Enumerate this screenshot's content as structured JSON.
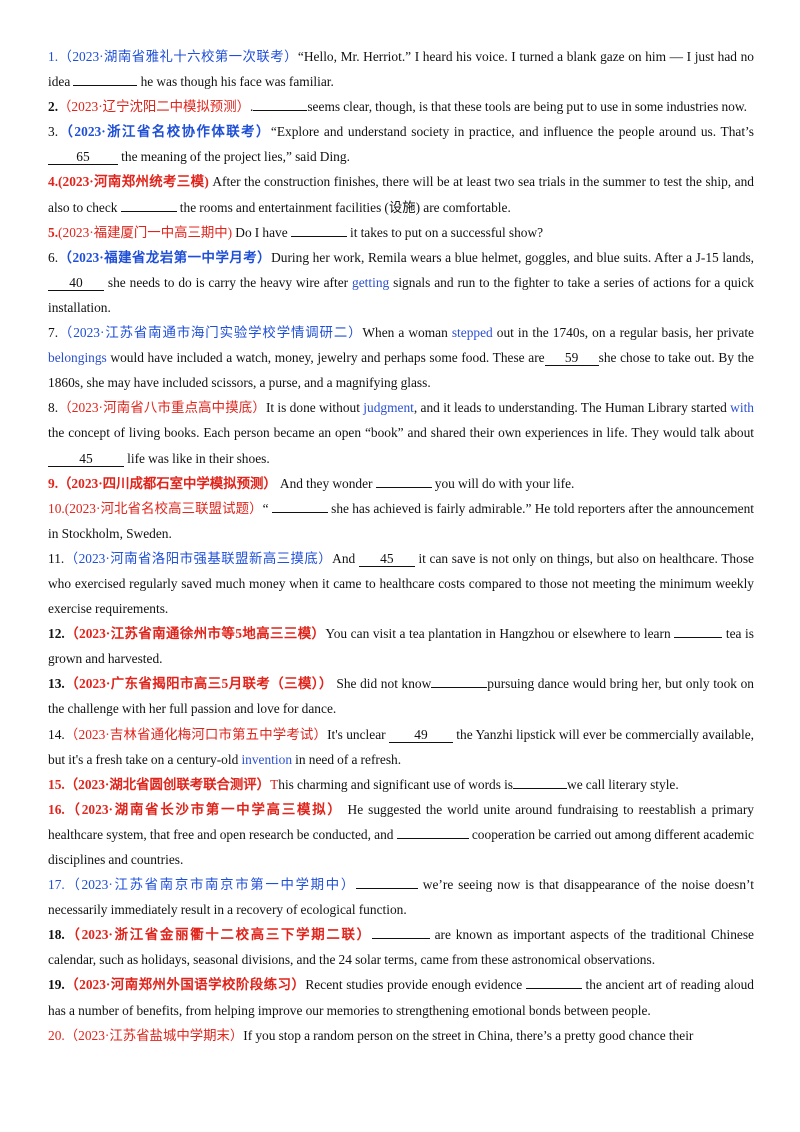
{
  "items": [
    {
      "num": "1.",
      "src": "（2023·湖南省雅礼十六校第一次联考）",
      "t1": "“Hello, Mr. Herriot.” I heard his voice. I turned a blank gaze on him — I just had no idea ",
      "blank": "",
      "t2": " he was though his face was familiar."
    },
    {
      "num": "2.",
      "src": "（2023·辽宁沈阳二中模拟预测）",
      "t1": ".",
      "blank": "",
      "t2": "seems clear, though, is that these tools  are  being  put  to use in some industries now."
    },
    {
      "num": "3.",
      "src": "（2023·浙江省名校协作体联考）",
      "t1": "“Explore and understand society in practice, and influence the people around us. That’s ",
      "blank": "65",
      "t2": " the meaning of the project lies,” said Ding."
    },
    {
      "num": "4.",
      "src": "(2023·河南郑州统考三模)",
      "t1": " After the construction finishes, there will be at least two sea trials in the summer to test the ship, and also to check ",
      "blank": "",
      "t2": " the rooms and entertainment facilities (设施) are comfortable."
    },
    {
      "num": "5.",
      "src": "(2023·福建厦门一中高三期中)",
      "t1": " Do I have ",
      "blank": "",
      "t2": " it takes to put on a successful show?"
    },
    {
      "num": "6.",
      "src": "（2023·福建省龙岩第一中学月考）",
      "t1a": "During her work, Remila wears a blue helmet, goggles, and blue suits. After a J-15 lands, ",
      "blank": "40",
      "t1b": " she needs to do is carry the heavy wire after ",
      "hl": "getting",
      "t2": " signals and run to the fighter to take a series of actions for a quick installation."
    },
    {
      "num": "7.",
      "src": "（2023·江苏省南通市海门实验学校学情调研二）",
      "p1": "When a woman ",
      "h1": "stepped",
      "p2": " out in the 1740s, on a regular basis, her private ",
      "h2": "belongings",
      "p3": " would have included a watch, money, jewelry and perhaps some food. These are",
      "blank": "59",
      "p4": "she chose to take out. By the 1860s, she may have included scissors, a purse, and a magnifying glass."
    },
    {
      "num": "8.",
      "src": "（2023·河南省八市重点高中摸底）",
      "p1": "It is done without ",
      "h1": "judgment",
      "p2": ", and it leads to understanding. The Human Library started ",
      "h2": "with",
      "p3": " the concept of living books. Each person became an open “book” and shared their own experiences in life. They would talk about ",
      "blank": "45",
      "p4": " life was like in their shoes."
    },
    {
      "num": "9.",
      "src": "（2023·四川成都石室中学模拟预测）",
      "t1": " And they wonder ",
      "blank": "",
      "t2": " you will do with your life."
    },
    {
      "num": "10.",
      "src": "(2023·河北省名校高三联盟试题）",
      "t1": "“ ",
      "blank": "",
      "t2": " she has achieved is fairly admirable.” He told reporters after the announcement  in Stockholm, Sweden."
    },
    {
      "num": "11.",
      "src": "（2023·河南省洛阳市强基联盟新高三摸底）",
      "t1": "And ",
      "blank": "45",
      "t2": " it can save is not only on things, but also on healthcare. Those who exercised regularly saved much money when it came to healthcare costs compared to those not meeting the minimum weekly exercise requirements."
    },
    {
      "num": "12.",
      "src": "（2023·江苏省南通徐州市等5地高三三模）",
      "t1": "You can visit a tea plantation in Hangzhou or elsewhere to learn ",
      "blank": "",
      "t2": " tea is grown and harvested."
    },
    {
      "num": "13.",
      "src": "（2023·广东省揭阳市高三5月联考（三模））",
      "t1": "    She did not know",
      "blank": "",
      "t2": "pursuing dance would bring her, but only took on the challenge  with  her full passion and love for dance."
    },
    {
      "num": "14.",
      "src": "（2023·吉林省通化梅河口市第五中学考试）",
      "t1": "It's unclear ",
      "blank": "49",
      "t2a": " the Yanzhi lipstick will ever be commercially available, but it's a fresh take on a century-old ",
      "hl": "invention",
      "t2b": " in need of a refresh."
    },
    {
      "num": "15.",
      "src": "（2023·湖北省圆创联考联合测评）",
      "cap": "T",
      "t1": "his  charming  and significant use of words is",
      "blank": "",
      "t2": "we call literary style."
    },
    {
      "num": "16.",
      "src": "（2023·湖南省长沙市第一中学高三模拟）",
      "t1": " He suggested the world unite around fundraising to reestablish a primary healthcare system, that free and open research be conducted, and ",
      "blank": "",
      "t2": " cooperation be carried out among different academic disciplines and countries."
    },
    {
      "num": "17.",
      "src": "（2023·江苏省南京市南京市第一中学期中）",
      "blank": "",
      "t2": " we’re seeing now is that disappearance of the noise doesn’t necessarily immediately result in a recovery of ecological function."
    },
    {
      "num": "18.",
      "src": "（2023·浙江省金丽衢十二校高三下学期二联）",
      "blank": "",
      "t2": " are known as important aspects of the traditional Chinese calendar, such as holidays, seasonal divisions, and the 24 solar terms, came from these astronomical observations."
    },
    {
      "num": "19.",
      "src": "（2023·河南郑州外国语学校阶段练习）",
      "t1": "Recent studies provide enough evidence ",
      "blank": "",
      "t2": " the ancient art of reading aloud has a number of benefits, from helping improve our memories  to  strengthening emotional bonds between people."
    },
    {
      "num": "20.",
      "src": "（2023·江苏省盐城中学期末）",
      "t1": "If you stop a random person on the street in China, there’s a pretty good chance their"
    }
  ]
}
